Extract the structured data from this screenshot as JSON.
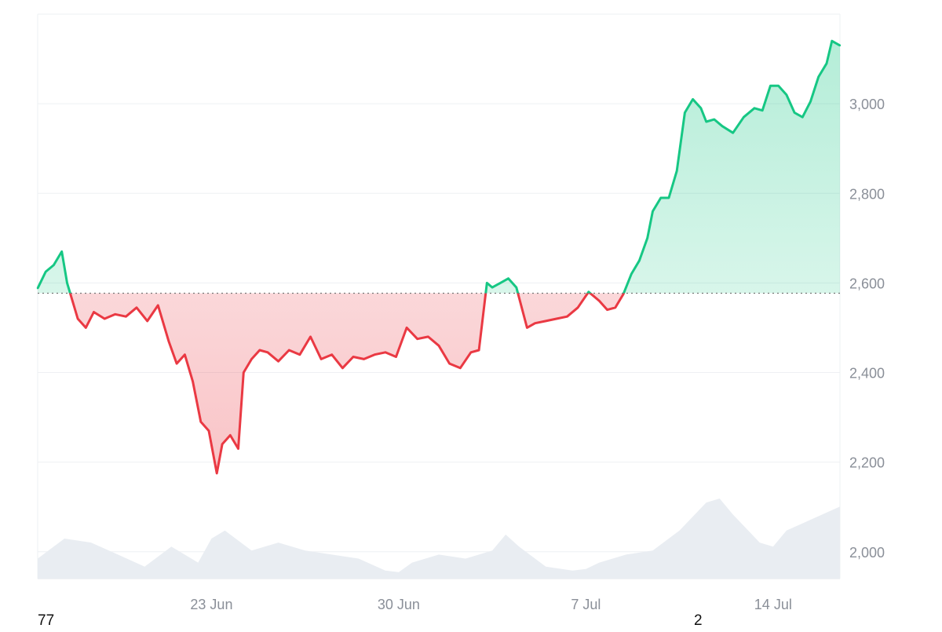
{
  "chart_data": {
    "type": "area",
    "title": "",
    "xlabel": "",
    "ylabel": "",
    "baseline": 2577,
    "ylim": [
      1940,
      3200
    ],
    "yticks": [
      2000,
      2200,
      2400,
      2600,
      2800,
      3000
    ],
    "ytick_labels": [
      "2,000",
      "2,200",
      "2,400",
      "2,600",
      "2,800",
      "3,000"
    ],
    "xlim": [
      0,
      30
    ],
    "xticks": [
      {
        "label": "23 Jun",
        "day": 6.5
      },
      {
        "label": "30 Jun",
        "day": 13.5
      },
      {
        "label": "7 Jul",
        "day": 20.5
      },
      {
        "label": "14 Jul",
        "day": 27.5
      }
    ],
    "grid": true,
    "colors": {
      "above": "#16c784",
      "below": "#ea3943",
      "above_fill": "#16c784",
      "below_fill": "#ea3943",
      "volume": "#e9edf2",
      "grid": "#eef0f3",
      "baseline": "#777777"
    },
    "series": [
      {
        "values_x_day": [
          0,
          0.3,
          0.6,
          0.9,
          1.1,
          1.3,
          1.5,
          1.8,
          2.1,
          2.5,
          2.9,
          3.3,
          3.7,
          4.1,
          4.5,
          4.9,
          5.2,
          5.5,
          5.8,
          6.1,
          6.4,
          6.7,
          6.9,
          7.2,
          7.5,
          7.7,
          8,
          8.3,
          8.6,
          9,
          9.4,
          9.8,
          10.2,
          10.6,
          11,
          11.4,
          11.8,
          12.2,
          12.6,
          13,
          13.4,
          13.8,
          14.2,
          14.6,
          15,
          15.4,
          15.8,
          16.2,
          16.5,
          16.8,
          17,
          17.3,
          17.6,
          17.9,
          18.3,
          18.6,
          19,
          19.4,
          19.8,
          20.2,
          20.6,
          21,
          21.3,
          21.6,
          21.9,
          22.2,
          22.5,
          22.8,
          23,
          23.3,
          23.6,
          23.9,
          24.2,
          24.5,
          24.8,
          25,
          25.3,
          25.6,
          26,
          26.4,
          26.8,
          27.1,
          27.4,
          27.7,
          28,
          28.3,
          28.6,
          28.9,
          29.2,
          29.5,
          29.7,
          30
        ],
        "values": [
          2588,
          2625,
          2640,
          2670,
          2600,
          2560,
          2520,
          2500,
          2535,
          2520,
          2530,
          2525,
          2545,
          2515,
          2550,
          2470,
          2420,
          2440,
          2380,
          2290,
          2270,
          2175,
          2240,
          2260,
          2230,
          2400,
          2430,
          2450,
          2445,
          2425,
          2450,
          2440,
          2480,
          2430,
          2440,
          2410,
          2435,
          2430,
          2440,
          2445,
          2435,
          2500,
          2475,
          2480,
          2460,
          2420,
          2410,
          2445,
          2450,
          2600,
          2590,
          2600,
          2610,
          2590,
          2500,
          2510,
          2515,
          2520,
          2525,
          2545,
          2580,
          2560,
          2540,
          2545,
          2575,
          2620,
          2650,
          2700,
          2760,
          2790,
          2790,
          2850,
          2980,
          3010,
          2990,
          2960,
          2965,
          2950,
          2935,
          2970,
          2990,
          2985,
          3040,
          3040,
          3020,
          2980,
          2970,
          3005,
          3060,
          3090,
          3140,
          3130
        ]
      }
    ],
    "volume": {
      "values_x_day": [
        0,
        1,
        2,
        3,
        4,
        5,
        6,
        6.5,
        7,
        8,
        9,
        10,
        11,
        12,
        13,
        13.5,
        14,
        15,
        16,
        17,
        17.5,
        18,
        19,
        20,
        20.5,
        21,
        22,
        23,
        24,
        25,
        25.5,
        26,
        27,
        27.5,
        28,
        29,
        30
      ],
      "values": [
        0.25,
        0.5,
        0.45,
        0.3,
        0.15,
        0.4,
        0.2,
        0.5,
        0.6,
        0.35,
        0.45,
        0.35,
        0.3,
        0.25,
        0.1,
        0.08,
        0.2,
        0.3,
        0.25,
        0.35,
        0.55,
        0.4,
        0.15,
        0.1,
        0.12,
        0.2,
        0.3,
        0.35,
        0.6,
        0.95,
        1,
        0.8,
        0.45,
        0.4,
        0.6,
        0.75,
        0.9
      ]
    }
  },
  "footer": {
    "left_text": "77",
    "right_text": "2"
  }
}
